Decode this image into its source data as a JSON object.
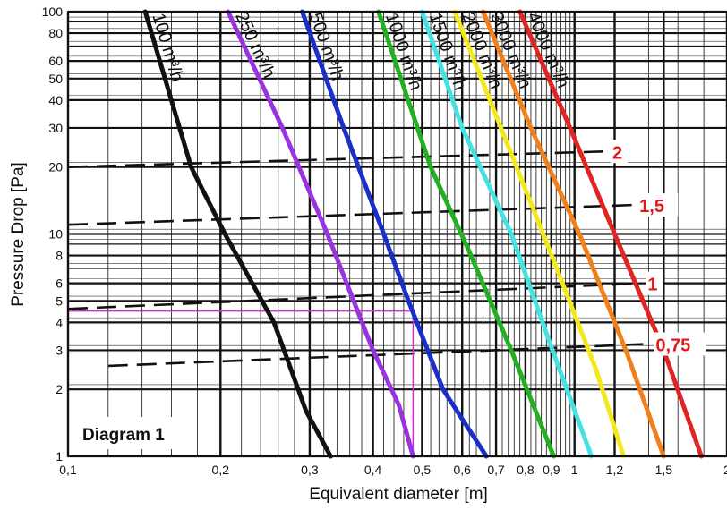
{
  "chart_data": {
    "type": "line",
    "title": "",
    "panel_label": "Diagram 1",
    "xlabel": "Equivalent diameter [m]",
    "ylabel": "Pressure Drop [Pa]",
    "x_scale": "log",
    "y_scale": "log",
    "xlim": [
      0.1,
      2
    ],
    "ylim": [
      1,
      100
    ],
    "grid": true,
    "x_ticks": [
      0.1,
      0.2,
      0.3,
      0.4,
      0.5,
      0.6,
      0.7,
      0.8,
      0.9,
      1,
      1.2,
      1.5,
      2
    ],
    "x_tick_labels": [
      "0,1",
      "0,2",
      "0,3",
      "0,4",
      "0,5",
      "0,6",
      "0,7",
      "0,8",
      "0,9",
      "1",
      "1,2",
      "1,5",
      "2"
    ],
    "y_ticks": [
      1,
      2,
      3,
      4,
      5,
      6,
      8,
      10,
      20,
      30,
      40,
      50,
      60,
      80,
      100
    ],
    "y_tick_labels": [
      "1",
      "2",
      "3",
      "4",
      "5",
      "6",
      "8",
      "10",
      "20",
      "30",
      "40",
      "50",
      "60",
      "80",
      "100"
    ],
    "series": [
      {
        "name": "100 m³/h",
        "color": "#111111",
        "x": [
          0.142,
          0.175,
          0.205,
          0.255,
          0.295,
          0.33
        ],
        "y": [
          100,
          20,
          9.8,
          4,
          1.6,
          1
        ]
      },
      {
        "name": "250 m³/h",
        "color": "#9933dd",
        "x": [
          0.207,
          0.265,
          0.325,
          0.4,
          0.45,
          0.48
        ],
        "y": [
          100,
          30,
          10,
          3,
          1.7,
          1
        ]
      },
      {
        "name": "500 m³/h",
        "color": "#1a2fc8",
        "x": [
          0.29,
          0.35,
          0.42,
          0.47,
          0.55,
          0.67
        ],
        "y": [
          100,
          30,
          10,
          5,
          2,
          1
        ]
      },
      {
        "name": "1000 m³/h",
        "color": "#22b022",
        "x": [
          0.41,
          0.52,
          0.62,
          0.75,
          0.91
        ],
        "y": [
          100,
          20,
          8.3,
          3,
          1
        ]
      },
      {
        "name": "1500 m³/h",
        "color": "#44e2e2",
        "x": [
          0.5,
          0.6,
          0.75,
          0.9,
          1.08
        ],
        "y": [
          100,
          30,
          10,
          3.1,
          1
        ]
      },
      {
        "name": "2000 m³/h",
        "color": "#f2e81c",
        "x": [
          0.58,
          0.72,
          0.89,
          1.1,
          1.25
        ],
        "y": [
          100,
          29,
          8.6,
          2.5,
          1
        ]
      },
      {
        "name": "3000 m³/h",
        "color": "#f07f1c",
        "x": [
          0.66,
          0.82,
          1.03,
          1.27,
          1.5
        ],
        "y": [
          100,
          30,
          9.6,
          2.9,
          1
        ]
      },
      {
        "name": "4000 m³/h",
        "color": "#e02424",
        "x": [
          0.78,
          0.98,
          1.2,
          1.5,
          1.78
        ],
        "y": [
          100,
          30,
          10,
          3,
          1
        ]
      }
    ],
    "velocity_lines": [
      {
        "label": "2",
        "x": [
          0.1,
          1.15
        ],
        "y": [
          20,
          23.5
        ]
      },
      {
        "label": "1,5",
        "x": [
          0.1,
          1.3
        ],
        "y": [
          11,
          13.5
        ]
      },
      {
        "label": "1",
        "x": [
          0.1,
          1.35
        ],
        "y": [
          4.6,
          6.0
        ]
      },
      {
        "label": "0,75",
        "x": [
          0.12,
          1.4
        ],
        "y": [
          2.55,
          3.2
        ]
      }
    ],
    "velocity_label_color": "#e01818",
    "highlight": {
      "x": 0.48,
      "y": 4.5,
      "color": "#dd22dd"
    }
  }
}
